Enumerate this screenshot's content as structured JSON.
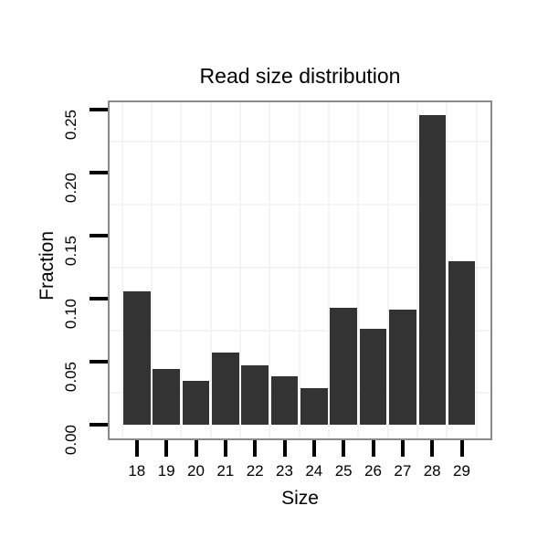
{
  "chart_data": {
    "type": "bar",
    "title": "Read size distribution",
    "xlabel": "Size",
    "ylabel": "Fraction",
    "categories": [
      "18",
      "19",
      "20",
      "21",
      "22",
      "23",
      "24",
      "25",
      "26",
      "27",
      "28",
      "29"
    ],
    "values": [
      0.106,
      0.044,
      0.035,
      0.057,
      0.047,
      0.038,
      0.029,
      0.093,
      0.076,
      0.091,
      0.246,
      0.13
    ],
    "y_ticks": [
      "0.00",
      "0.05",
      "0.10",
      "0.15",
      "0.20",
      "0.25"
    ],
    "y_tick_values": [
      0.0,
      0.05,
      0.1,
      0.15,
      0.2,
      0.25
    ],
    "ylim": [
      0,
      0.25
    ],
    "minor_gridline_values": [
      0.025,
      0.075,
      0.125,
      0.175,
      0.225
    ],
    "legend": "none",
    "grid": "minor-lines-only",
    "colors": {
      "bar": "#333333",
      "panel_border": "#898989",
      "grid": "#f4f4f4",
      "tick": "#000000",
      "text": "#000000",
      "background": "#ffffff"
    }
  }
}
